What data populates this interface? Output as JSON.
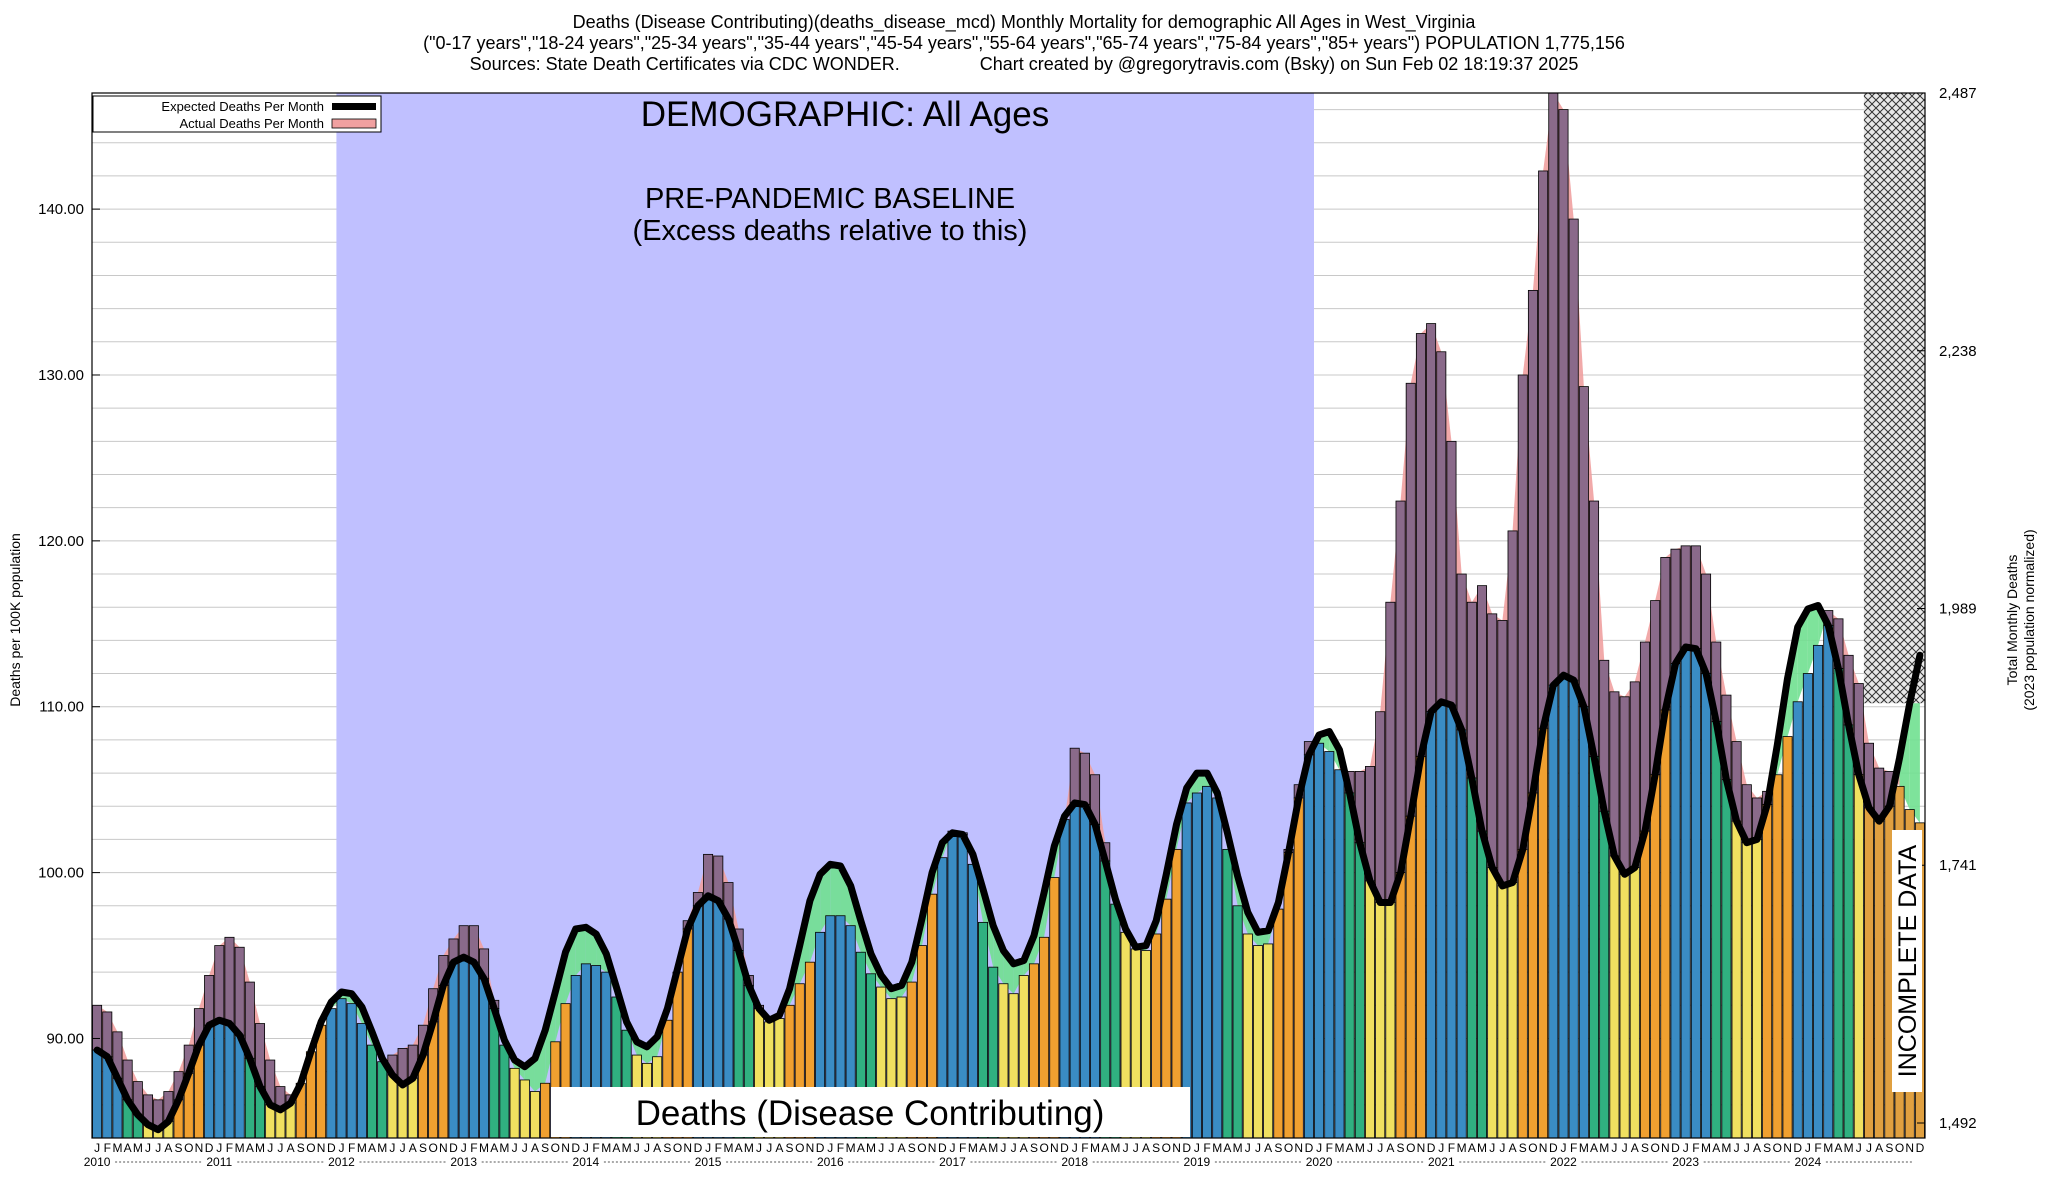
{
  "title": {
    "line1": "Deaths (Disease Contributing)(deaths_disease_mcd) Monthly Mortality for demographic All Ages in West_Virginia",
    "line2": "(\"0-17 years\",\"18-24 years\",\"25-34 years\",\"35-44 years\",\"45-54 years\",\"55-64 years\",\"65-74 years\",\"75-84 years\",\"85+ years\") POPULATION 1,775,156",
    "line3": "Sources: State Death Certificates via CDC WONDER.                Chart created by @gregorytravis.com (Bsky) on Sun Feb 02 18:19:37 2025"
  },
  "annotations": {
    "demographic": "DEMOGRAPHIC: All Ages",
    "baseline_line1": "PRE-PANDEMIC BASELINE",
    "baseline_line2": "(Excess deaths relative to this)",
    "category": "Deaths (Disease Contributing)",
    "incomplete": "INCOMPLETE DATA"
  },
  "legend": {
    "expected": "Expected Deaths Per Month",
    "actual": "Actual Deaths Per Month"
  },
  "axes": {
    "left_label": "Deaths per 100K population",
    "right_label_line1": "Total Monthly Deaths",
    "right_label_line2": "(2023 population normalized)",
    "left_ticks": [
      "90.00",
      "100.00",
      "110.00",
      "120.00",
      "130.00",
      "140.00"
    ],
    "right_ticks": [
      "1,492",
      "1,741",
      "1,989",
      "2,238",
      "2,487"
    ],
    "month_letters": [
      "J",
      "F",
      "M",
      "A",
      "M",
      "J",
      "J",
      "A",
      "S",
      "O",
      "N",
      "D"
    ],
    "years": [
      "2010",
      "2011",
      "2012",
      "2013",
      "2014",
      "2015",
      "2016",
      "2017",
      "2018",
      "2019",
      "2020",
      "2021",
      "2022",
      "2023",
      "2024"
    ]
  },
  "colors": {
    "baseline_shade": "#c0c0ff",
    "winter_bar": "#3a8cc4",
    "summer_bar": "#f0e060",
    "orange_bar": "#f0a030",
    "green_bar": "#30b080",
    "excess_fill": "#f0a0a0",
    "deficit_fill": "#70e090",
    "expected_line": "#000000"
  },
  "chart_data": {
    "type": "bar",
    "start": "2010-01",
    "ylim": [
      84,
      147
    ],
    "baseline_period": [
      "2012-01",
      "2019-12"
    ],
    "incomplete_period": [
      "2024-07",
      "2024-12"
    ],
    "right_axis_values": [
      1492,
      1741,
      1989,
      2238,
      2487
    ],
    "actual": [
      92.0,
      91.6,
      90.4,
      88.7,
      87.4,
      86.6,
      86.3,
      86.8,
      88.0,
      89.6,
      91.8,
      93.8,
      95.6,
      96.1,
      95.5,
      93.4,
      90.9,
      88.7,
      87.1,
      86.6,
      87.3,
      89.2,
      90.8,
      91.8,
      92.4,
      92.1,
      90.9,
      89.6,
      88.6,
      89.0,
      89.4,
      89.6,
      90.8,
      93.0,
      95.0,
      96.0,
      96.8,
      96.8,
      95.4,
      92.3,
      89.6,
      88.2,
      87.5,
      86.8,
      87.3,
      89.8,
      92.1,
      93.8,
      94.5,
      94.4,
      94.0,
      92.5,
      90.5,
      89.0,
      88.5,
      88.9,
      91.1,
      94.0,
      97.1,
      98.8,
      101.1,
      101.0,
      99.4,
      96.6,
      93.8,
      92.0,
      91.0,
      91.2,
      92.0,
      93.3,
      94.6,
      96.4,
      97.4,
      97.4,
      96.8,
      95.2,
      93.9,
      93.1,
      92.4,
      92.5,
      93.4,
      95.6,
      98.7,
      100.9,
      102.5,
      102.4,
      100.5,
      97.0,
      94.3,
      93.3,
      92.7,
      93.8,
      94.5,
      96.1,
      99.7,
      103.2,
      107.5,
      107.2,
      105.9,
      101.8,
      98.1,
      96.4,
      95.4,
      95.3,
      96.3,
      98.4,
      101.4,
      104.2,
      104.8,
      105.2,
      104.5,
      101.4,
      98.0,
      96.3,
      95.6,
      95.7,
      97.8,
      101.4,
      105.3,
      107.9,
      107.8,
      107.3,
      106.2,
      106.1,
      106.1,
      106.4,
      109.7,
      116.3,
      122.4,
      129.5,
      132.5,
      133.1,
      131.4,
      126.0,
      118.0,
      116.3,
      117.3,
      115.6,
      115.2,
      120.6,
      130.0,
      135.1,
      142.3,
      147.0,
      146.0,
      139.4,
      129.3,
      122.4,
      112.8,
      110.9,
      110.6,
      111.5,
      113.9,
      116.4,
      119.0,
      119.5,
      119.7,
      119.7,
      118.0,
      113.9,
      110.7,
      107.9,
      105.3,
      104.5,
      104.9,
      105.9,
      108.2,
      110.3,
      112.0,
      113.7,
      115.8,
      115.3,
      113.1,
      111.4,
      107.8,
      106.3,
      106.1,
      105.2,
      103.8,
      103.0
    ],
    "expected": [
      89.3,
      88.9,
      87.6,
      86.3,
      85.4,
      84.8,
      84.5,
      85.0,
      86.3,
      87.9,
      89.6,
      90.8,
      91.1,
      90.9,
      90.2,
      88.8,
      87.1,
      86.0,
      85.7,
      86.1,
      87.3,
      89.2,
      91.0,
      92.2,
      92.8,
      92.7,
      91.9,
      90.4,
      88.8,
      87.8,
      87.2,
      87.6,
      89.0,
      91.0,
      93.2,
      94.6,
      94.9,
      94.6,
      93.6,
      91.8,
      89.9,
      88.7,
      88.3,
      88.8,
      90.5,
      92.8,
      95.2,
      96.6,
      96.7,
      96.3,
      95.1,
      93.1,
      91.0,
      89.8,
      89.5,
      90.1,
      91.8,
      94.2,
      96.6,
      98.0,
      98.6,
      98.3,
      97.2,
      95.3,
      93.2,
      91.8,
      91.1,
      91.4,
      93.0,
      95.6,
      98.3,
      99.9,
      100.5,
      100.4,
      99.2,
      97.1,
      95.1,
      93.8,
      93.0,
      93.2,
      94.6,
      97.2,
      100.0,
      101.8,
      102.4,
      102.3,
      101.1,
      99.0,
      96.8,
      95.3,
      94.5,
      94.7,
      96.2,
      98.8,
      101.6,
      103.4,
      104.2,
      104.1,
      102.9,
      100.7,
      98.4,
      96.6,
      95.5,
      95.6,
      97.1,
      99.9,
      102.9,
      105.1,
      106.0,
      106.0,
      104.8,
      102.4,
      99.8,
      97.6,
      96.4,
      96.5,
      98.2,
      101.2,
      104.5,
      107.1,
      108.3,
      108.5,
      107.4,
      104.8,
      101.8,
      99.5,
      98.2,
      98.2,
      100.0,
      103.4,
      107.0,
      109.7,
      110.3,
      110.1,
      108.6,
      105.7,
      102.5,
      100.3,
      99.2,
      99.4,
      101.4,
      104.8,
      108.7,
      111.3,
      111.9,
      111.6,
      110.0,
      107.0,
      103.7,
      101.0,
      99.9,
      100.3,
      102.5,
      105.9,
      109.8,
      112.6,
      113.6,
      113.5,
      112.0,
      109.1,
      105.6,
      103.1,
      101.8,
      102.0,
      104.1,
      107.7,
      111.7,
      114.8,
      115.9,
      116.1,
      114.9,
      112.3,
      108.9,
      105.9,
      103.9,
      103.1,
      104.0,
      106.9,
      110.2,
      113.1
    ]
  }
}
